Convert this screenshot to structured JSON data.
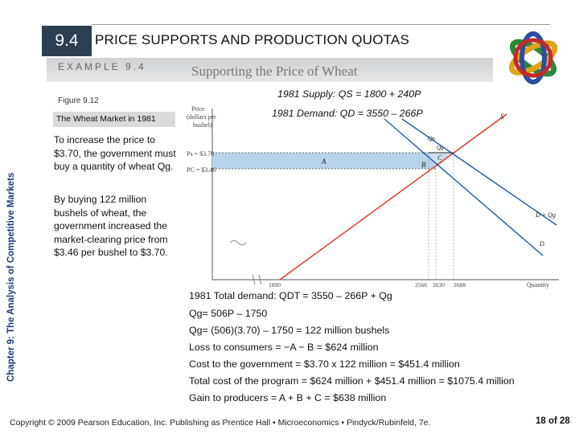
{
  "slide": {
    "section_number": "9.4",
    "title": "PRICE SUPPORTS AND PRODUCTION QUOTAS",
    "sidebar": "Chapter 9: The Analysis of Competitive Markets",
    "example_tag": "EXAMPLE 9.4",
    "example_heading": "Supporting the Price of Wheat",
    "figure_label": "Figure 9.12",
    "figure_title": "The Wheat Market in 1981",
    "paragraph1": "To increase the price to $3.70, the government must buy a quantity of wheat Qg.",
    "paragraph2": "By buying 122 million bushels of wheat, the government increased the market-clearing price from $3.46 per bushel to $3.70.",
    "supply_eq": "1981 Supply: QS = 1800 + 240P",
    "demand_eq": "1981 Demand: QD = 3550 – 266P",
    "calc": [
      "1981 Total demand: QDT = 3550 – 266P + Qg",
      "Qg= 506P – 1750",
      "Qg= (506)(3.70) – 1750 = 122 million bushels",
      "Loss to consumers = −A − B = $624 million",
      "Cost to the government = $3.70 x 122 million = $451.4 million",
      "Total cost of the program = $624 million + $451.4 million = $1075.4 million",
      "Gain to producers = A + B + C = $638 million"
    ],
    "footer": "Copyright © 2009 Pearson Education, Inc. Publishing as Prentice Hall • Microeconomics • Pindyck/Rubinfeld, 7e.",
    "page": "18 of 28"
  },
  "chart_data": {
    "type": "line",
    "ylabel": "Price (dollars per bushel)",
    "xlabel": "Quantity",
    "y_ticks": [
      "Ps = $3.70",
      "PC = $3.46"
    ],
    "x_ticks": [
      "1800",
      "2566",
      "2630",
      "2688"
    ],
    "series": [
      {
        "name": "S",
        "points": [
          [
            1800,
            0
          ],
          [
            2688,
            3.7
          ]
        ]
      },
      {
        "name": "D",
        "points": [
          [
            2080,
            5.6
          ],
          [
            3000,
            2.1
          ]
        ]
      },
      {
        "name": "D + Qg",
        "points": [
          [
            2270,
            5.6
          ],
          [
            3120,
            2.4
          ]
        ]
      }
    ],
    "areas": [
      "A",
      "B",
      "C"
    ],
    "curve_labels": [
      "S",
      "D + Qg",
      "D",
      "Qs",
      "Qg"
    ],
    "colors": {
      "supply": "#e8321e",
      "demand": "#1e5aa8",
      "area": "#b9d3ea"
    }
  }
}
